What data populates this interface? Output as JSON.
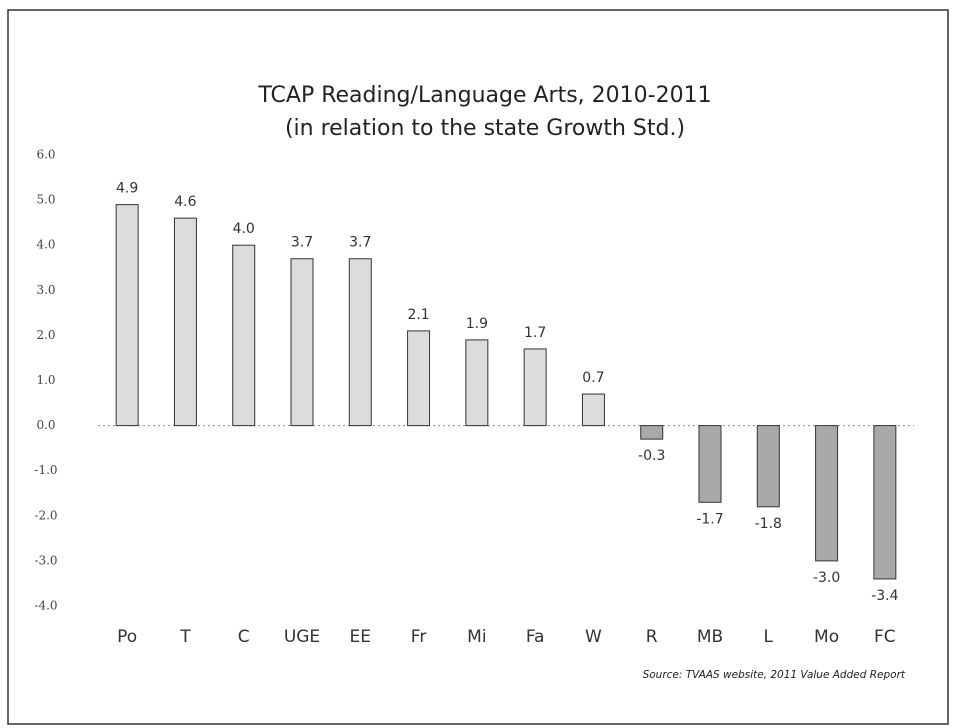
{
  "chart_data": {
    "type": "bar",
    "title": "TCAP Reading/Language Arts, 2010-2011",
    "subtitle": "(in relation to the state Growth Std.)",
    "source": "Source: TVAAS website, 2011 Value Added Report",
    "categories": [
      "Po",
      "T",
      "C",
      "UGE",
      "EE",
      "Fr",
      "Mi",
      "Fa",
      "W",
      "R",
      "MB",
      "L",
      "Mo",
      "FC"
    ],
    "values": [
      4.9,
      4.6,
      4.0,
      3.7,
      3.7,
      2.1,
      1.9,
      1.7,
      0.7,
      -0.3,
      -1.7,
      -1.8,
      -3.0,
      -3.4
    ],
    "value_labels": [
      "4.9",
      "4.6",
      "4.0",
      "3.7",
      "3.7",
      "2.1",
      "1.9",
      "1.7",
      "0.7",
      "-0.3",
      "-1.7",
      "-1.8",
      "-3.0",
      "-3.4"
    ],
    "color": "#dcdcdc",
    "negative_color": "#a9a9a9",
    "ylim": [
      -4,
      6
    ],
    "yticks": [
      {
        "value": 6,
        "label": "6.0"
      },
      {
        "value": 5,
        "label": "5.0"
      },
      {
        "value": 4,
        "label": "4.0"
      },
      {
        "value": 3,
        "label": "3.0"
      },
      {
        "value": 2,
        "label": "2.0"
      },
      {
        "value": 1,
        "label": "1.0"
      },
      {
        "value": 0,
        "label": "0.0"
      },
      {
        "value": -1,
        "label": "-1.0"
      },
      {
        "value": -2,
        "label": "-2.0"
      },
      {
        "value": -3,
        "label": "-3.0"
      },
      {
        "value": -4,
        "label": "-4.0"
      }
    ],
    "grid": false
  }
}
